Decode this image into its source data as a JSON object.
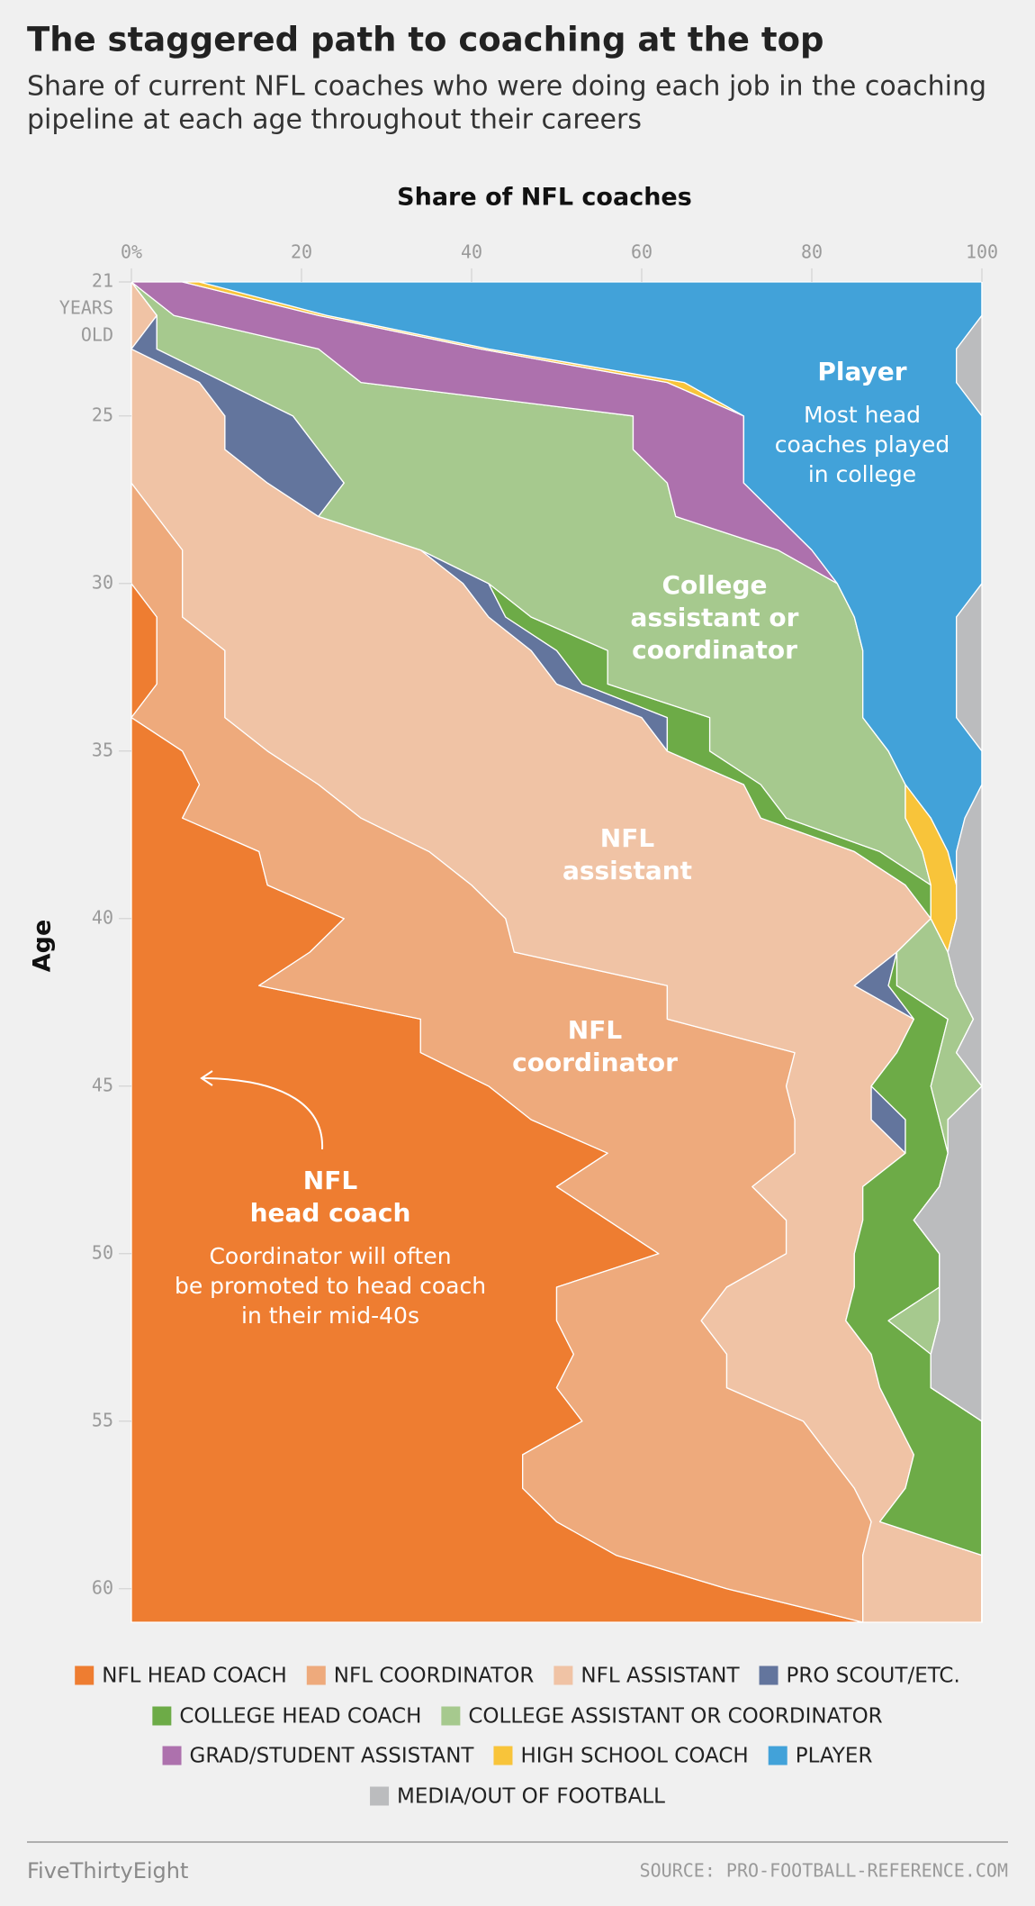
{
  "chart_data": {
    "type": "stacked-area-horizontal",
    "title": "The staggered path to coaching at the top",
    "subtitle": [
      "Share of current NFL coaches who were doing each job in the coaching",
      "pipeline at each age throughout their careers"
    ],
    "x_label": "Share of NFL coaches",
    "y_label": "Age",
    "xlim": [
      0,
      100
    ],
    "xticks": [
      {
        "value": 0,
        "label": "0%"
      },
      20,
      40,
      60,
      80,
      100
    ],
    "ylim": [
      21,
      61
    ],
    "yticks": [
      21,
      25,
      30,
      35,
      40,
      45,
      50,
      55,
      60
    ],
    "ytick_note": [
      "YEARS",
      "OLD"
    ],
    "y": [
      21,
      22,
      23,
      24,
      25,
      26,
      27,
      28,
      29,
      30,
      31,
      32,
      33,
      34,
      35,
      36,
      37,
      38,
      39,
      40,
      41,
      42,
      43,
      44,
      45,
      46,
      47,
      48,
      49,
      50,
      51,
      52,
      53,
      54,
      55,
      56,
      57,
      58,
      59,
      60,
      61
    ],
    "series": [
      {
        "name": "NFL HEAD COACH",
        "color": "#ee7d31",
        "values": [
          0,
          0,
          0,
          0,
          0,
          0,
          0,
          0,
          0,
          0,
          3,
          3,
          3,
          0,
          6,
          8,
          6,
          15,
          16,
          25,
          21,
          15,
          34,
          34,
          42,
          47,
          56,
          50,
          56,
          62,
          50,
          50,
          52,
          50,
          53,
          46,
          46,
          50,
          57,
          70,
          86
        ]
      },
      {
        "name": "NFL COORDINATOR",
        "color": "#eeaa7c",
        "values": [
          0,
          0,
          0,
          0,
          0,
          0,
          0,
          3,
          6,
          6,
          3,
          8,
          8,
          11,
          10,
          14,
          21,
          20,
          24,
          19,
          24,
          48,
          29,
          44,
          35,
          31,
          22,
          23,
          21,
          15,
          20,
          17,
          18,
          20,
          26,
          36,
          39,
          37,
          29,
          16,
          0
        ]
      },
      {
        "name": "NFL ASSISTANT",
        "color": "#f0c3a5",
        "values": [
          0,
          3,
          0,
          8,
          11,
          11,
          16,
          19,
          28,
          33,
          36,
          36,
          39,
          49,
          47,
          50,
          47,
          50,
          51,
          50,
          45,
          22,
          29,
          12,
          10,
          9,
          13,
          13,
          9,
          8,
          15,
          17,
          17,
          18,
          11,
          10,
          6,
          1,
          14,
          14,
          14
        ]
      },
      {
        "name": "PRO SCOUT/ETC.",
        "color": "#63759d",
        "values": [
          0,
          0,
          3,
          3,
          8,
          11,
          9,
          0,
          0,
          3,
          2,
          3,
          3,
          3,
          0,
          0,
          0,
          0,
          0,
          0,
          0,
          4,
          0,
          0,
          0,
          4,
          0,
          0,
          0,
          0,
          0,
          0,
          0,
          0,
          0,
          0,
          0,
          0,
          0,
          0,
          0
        ]
      },
      {
        "name": "COLLEGE HEAD COACH",
        "color": "#6dab47",
        "values": [
          0,
          0,
          0,
          0,
          0,
          0,
          0,
          0,
          0,
          0,
          3,
          6,
          3,
          5,
          5,
          2,
          3,
          3,
          3,
          0,
          0,
          1,
          4,
          5,
          7,
          4,
          5,
          9,
          6,
          10,
          10,
          5,
          7,
          6,
          10,
          8,
          9,
          12,
          0,
          0,
          0
        ]
      },
      {
        "name": "COLLEGE ASSISTANT OR COORDINATOR",
        "color": "#a6c98e",
        "values": [
          0,
          2,
          19,
          16,
          40,
          37,
          38,
          42,
          42,
          41,
          38,
          30,
          30,
          18,
          21,
          17,
          14,
          5,
          0,
          0,
          6,
          7,
          3,
          2,
          6,
          1,
          0,
          0,
          0,
          0,
          0,
          6,
          0,
          0,
          0,
          0,
          0,
          0,
          0,
          0,
          0
        ]
      },
      {
        "name": "GRAD/STUDENT ASSISTANT",
        "color": "#ad71ad",
        "values": [
          6,
          17,
          19,
          36,
          13,
          13,
          9,
          12,
          4,
          0,
          0,
          0,
          0,
          0,
          0,
          0,
          0,
          0,
          0,
          0,
          0,
          0,
          0,
          0,
          0,
          0,
          0,
          0,
          0,
          0,
          0,
          0,
          0,
          0,
          0,
          0,
          0,
          0,
          0,
          0,
          0
        ]
      },
      {
        "name": "HIGH SCHOOL COACH",
        "color": "#f8c43a",
        "values": [
          2,
          1,
          1,
          2,
          0,
          0,
          0,
          0,
          0,
          0,
          0,
          0,
          0,
          0,
          0,
          0,
          3,
          3,
          3,
          3,
          0,
          0,
          0,
          0,
          0,
          0,
          0,
          0,
          0,
          0,
          0,
          0,
          0,
          0,
          0,
          0,
          0,
          0,
          0,
          0,
          0
        ]
      },
      {
        "name": "PLAYER",
        "color": "#42a2d9",
        "values": [
          92,
          77,
          55,
          32,
          28,
          28,
          28,
          24,
          20,
          17,
          12,
          11,
          11,
          11,
          11,
          9,
          4,
          1,
          0,
          0,
          0,
          0,
          0,
          0,
          0,
          0,
          0,
          0,
          0,
          0,
          0,
          0,
          0,
          0,
          0,
          0,
          0,
          0,
          0,
          0,
          0
        ]
      },
      {
        "name": "MEDIA/OUT OF FOOTBALL",
        "color": "#bbbcbe",
        "values": [
          0,
          0,
          3,
          3,
          0,
          0,
          0,
          0,
          0,
          0,
          3,
          3,
          3,
          3,
          0,
          0,
          2,
          3,
          3,
          3,
          4,
          3,
          1,
          3,
          0,
          4,
          4,
          5,
          8,
          5,
          5,
          5,
          6,
          6,
          0,
          0,
          0,
          0,
          0,
          0,
          0
        ]
      }
    ],
    "annotations": [
      {
        "title": [
          "Player"
        ],
        "text": [
          "Most head",
          "coaches played",
          "in college"
        ]
      },
      {
        "title": [
          "College",
          "assistant or",
          "coordinator"
        ]
      },
      {
        "title": [
          "NFL",
          "assistant"
        ]
      },
      {
        "title": [
          "NFL",
          "coordinator"
        ]
      },
      {
        "title": [
          "NFL",
          "head coach"
        ],
        "text": [
          "Coordinator will often",
          "be promoted to head coach",
          "in their mid-40s"
        ]
      }
    ],
    "source": "SOURCE: PRO-FOOTBALL-REFERENCE.COM",
    "brand": "FiveThirtyEight"
  }
}
